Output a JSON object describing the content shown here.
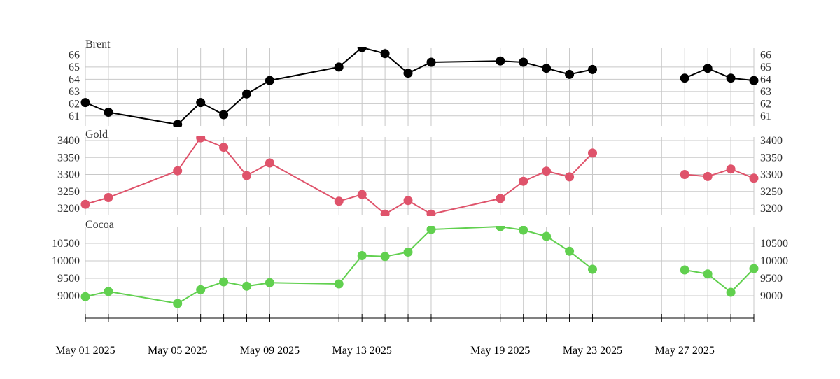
{
  "chart_data": {
    "type": "line",
    "dates": [
      "2025-05-01",
      "2025-05-02",
      "2025-05-05",
      "2025-05-06",
      "2025-05-07",
      "2025-05-08",
      "2025-05-09",
      "2025-05-12",
      "2025-05-13",
      "2025-05-14",
      "2025-05-15",
      "2025-05-16",
      "2025-05-19",
      "2025-05-20",
      "2025-05-21",
      "2025-05-22",
      "2025-05-23",
      "2025-05-26",
      "2025-05-27",
      "2025-05-28",
      "2025-05-29",
      "2025-05-30"
    ],
    "x_labels": [
      {
        "date": "2025-05-01",
        "label": "May 01 2025"
      },
      {
        "date": "2025-05-05",
        "label": "May 05 2025"
      },
      {
        "date": "2025-05-09",
        "label": "May 09 2025"
      },
      {
        "date": "2025-05-13",
        "label": "May 13 2025"
      },
      {
        "date": "2025-05-19",
        "label": "May 19 2025"
      },
      {
        "date": "2025-05-23",
        "label": "May 23 2025"
      },
      {
        "date": "2025-05-27",
        "label": "May 27 2025"
      }
    ],
    "panels": [
      {
        "title": "Brent",
        "color": "#000000",
        "ylim": [
          60.3,
          66.6
        ],
        "yticks": [
          61,
          62,
          63,
          64,
          65,
          66
        ],
        "values": [
          62.1,
          61.3,
          null,
          62.1,
          61.1,
          62.8,
          63.9,
          65.0,
          66.6,
          66.1,
          64.5,
          65.4,
          65.5,
          65.4,
          64.9,
          64.4,
          64.8,
          null,
          64.1,
          64.9,
          64.1,
          63.9
        ],
        "clipped": [
          {
            "date": "2025-05-05",
            "value": 60.3
          }
        ]
      },
      {
        "title": "Gold",
        "color": "#df536b",
        "ylim": [
          3183,
          3408
        ],
        "yticks": [
          3200,
          3250,
          3300,
          3350,
          3400
        ],
        "values": [
          3212,
          3232,
          3311,
          3408,
          3380,
          3297,
          3334,
          3221,
          3241,
          3183,
          3223,
          3183,
          3229,
          3280,
          3310,
          3293,
          3363,
          null,
          3300,
          3294,
          3316,
          3289
        ],
        "clipped": []
      },
      {
        "title": "Cocoa",
        "color": "#61d04f",
        "ylim": [
          8780,
          10980
        ],
        "yticks": [
          9000,
          9500,
          10000,
          10500
        ],
        "values": [
          8975,
          9125,
          8780,
          9175,
          9400,
          9275,
          9375,
          9340,
          10150,
          10125,
          10250,
          10900,
          10980,
          10880,
          10700,
          10275,
          9760,
          null,
          9740,
          9625,
          9100,
          9780
        ],
        "clipped": []
      }
    ]
  }
}
